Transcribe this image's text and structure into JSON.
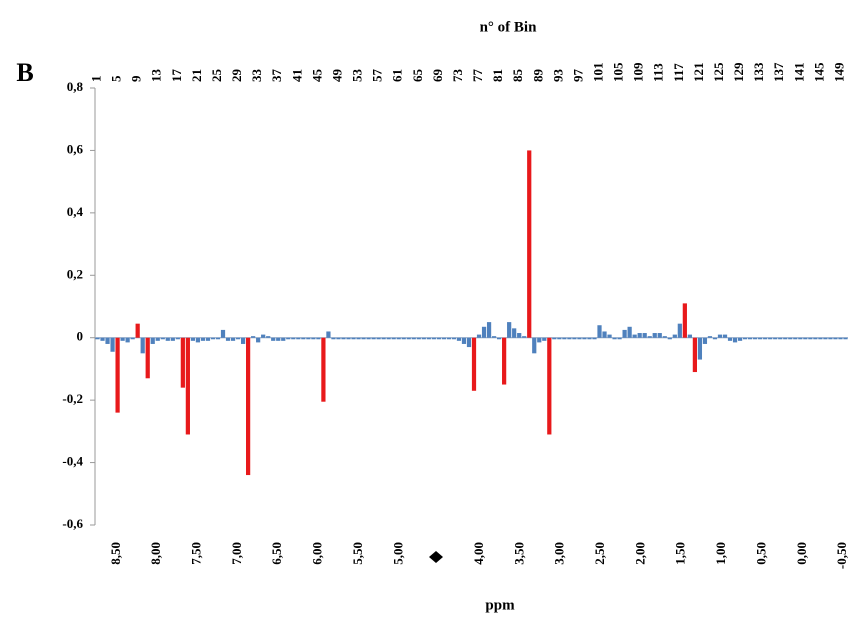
{
  "panel_label": "B",
  "chart_data": {
    "type": "bar",
    "x2_label": "n° of Bin",
    "x_label": "ppm",
    "ylim": [
      -0.6,
      0.8
    ],
    "yticks": [
      {
        "value": -0.6,
        "label": "-0,6"
      },
      {
        "value": -0.4,
        "label": "-0,4"
      },
      {
        "value": -0.2,
        "label": "-0,2"
      },
      0,
      {
        "value": 0.2,
        "label": "0,2"
      },
      {
        "value": 0.4,
        "label": "0,4"
      },
      {
        "value": 0.6,
        "label": "0,6"
      },
      {
        "value": 0.8,
        "label": "0,8"
      }
    ],
    "x2lim": [
      0.5,
      150.5
    ],
    "x2ticks": [
      1,
      5,
      9,
      13,
      17,
      21,
      25,
      29,
      33,
      37,
      41,
      45,
      49,
      53,
      57,
      61,
      65,
      69,
      73,
      77,
      81,
      85,
      89,
      93,
      97,
      101,
      105,
      109,
      113,
      117,
      121,
      125,
      129,
      133,
      137,
      141,
      145,
      149
    ],
    "xlim": [
      8.77,
      -0.56
    ],
    "xticks": [
      {
        "value": 8.5,
        "label": "8,50"
      },
      {
        "value": 8.0,
        "label": "8,00"
      },
      {
        "value": 7.5,
        "label": "7,50"
      },
      {
        "value": 7.0,
        "label": "7,00"
      },
      {
        "value": 6.5,
        "label": "6,50"
      },
      {
        "value": 6.0,
        "label": "6,00"
      },
      {
        "value": 5.5,
        "label": "5,50"
      },
      {
        "value": 5.0,
        "label": "5,00"
      },
      {
        "value": 4.0,
        "label": "4,00"
      },
      {
        "value": 3.5,
        "label": "3,50"
      },
      {
        "value": 3.0,
        "label": "3,00"
      },
      {
        "value": 2.5,
        "label": "2,50"
      },
      {
        "value": 2.0,
        "label": "2,00"
      },
      {
        "value": 1.5,
        "label": "1,50"
      },
      {
        "value": 1.0,
        "label": "1,00"
      },
      {
        "value": 0.5,
        "label": "0,50"
      },
      {
        "value": 0,
        "label": "0,00"
      },
      {
        "value": -0.5,
        "label": "-0,50"
      }
    ],
    "series": [
      {
        "color": "#4f81bd",
        "values": [
          -0.005,
          -0.01,
          -0.02,
          -0.045,
          null,
          -0.01,
          -0.015,
          -0.005,
          null,
          -0.05,
          null,
          -0.02,
          -0.01,
          -0.005,
          -0.01,
          -0.01,
          -0.005,
          null,
          null,
          -0.01,
          -0.015,
          -0.01,
          -0.01,
          -0.005,
          -0.005,
          0.025,
          -0.01,
          -0.01,
          -0.005,
          -0.02,
          null,
          0.005,
          -0.015,
          0.01,
          0.005,
          -0.01,
          -0.01,
          -0.01,
          -0.005,
          -0.005,
          -0.005,
          -0.005,
          -0.005,
          -0.005,
          -0.005,
          null,
          0.02,
          -0.005,
          -0.005,
          -0.005,
          -0.005,
          -0.005,
          -0.005,
          -0.005,
          -0.005,
          -0.005,
          -0.005,
          -0.005,
          -0.005,
          -0.005,
          -0.005,
          -0.005,
          -0.005,
          -0.005,
          -0.005,
          -0.005,
          -0.005,
          -0.005,
          -0.005,
          -0.005,
          -0.005,
          -0.005,
          -0.01,
          -0.02,
          -0.03,
          null,
          0.01,
          0.035,
          0.05,
          0.005,
          -0.005,
          null,
          0.05,
          0.03,
          0.015,
          0.005,
          null,
          -0.05,
          -0.015,
          -0.01,
          null,
          -0.005,
          -0.005,
          -0.005,
          -0.005,
          -0.005,
          -0.005,
          -0.005,
          -0.005,
          -0.005,
          0.04,
          0.02,
          0.01,
          -0.005,
          -0.005,
          0.025,
          0.035,
          0.01,
          0.015,
          0.015,
          0.005,
          0.015,
          0.015,
          0.005,
          -0.005,
          0.01,
          0.045,
          null,
          0.01,
          null,
          -0.07,
          -0.02,
          0.005,
          -0.005,
          0.01,
          0.01,
          -0.01,
          -0.015,
          -0.01,
          -0.005,
          -0.005,
          -0.005,
          -0.005,
          -0.005,
          -0.005,
          -0.005,
          -0.005,
          -0.005,
          -0.005,
          -0.005,
          -0.005,
          -0.005,
          -0.005,
          -0.005,
          -0.005,
          -0.005,
          -0.005,
          -0.005,
          -0.005,
          -0.005
        ]
      },
      {
        "color": "#e8191b",
        "values": [
          null,
          null,
          null,
          null,
          -0.24,
          null,
          null,
          null,
          0.045,
          null,
          -0.13,
          null,
          null,
          null,
          null,
          null,
          null,
          -0.16,
          -0.31,
          null,
          null,
          null,
          null,
          null,
          null,
          null,
          null,
          null,
          null,
          null,
          -0.44,
          null,
          null,
          null,
          null,
          null,
          null,
          null,
          null,
          null,
          null,
          null,
          null,
          null,
          null,
          -0.205,
          null,
          null,
          null,
          null,
          null,
          null,
          null,
          null,
          null,
          null,
          null,
          null,
          null,
          null,
          null,
          null,
          null,
          null,
          null,
          null,
          null,
          null,
          null,
          null,
          null,
          null,
          null,
          null,
          null,
          -0.17,
          null,
          null,
          null,
          null,
          null,
          -0.15,
          null,
          null,
          null,
          null,
          0.6,
          null,
          null,
          null,
          -0.31,
          null,
          null,
          null,
          null,
          null,
          null,
          null,
          null,
          null,
          null,
          null,
          null,
          null,
          null,
          null,
          null,
          null,
          null,
          null,
          null,
          null,
          null,
          null,
          null,
          null,
          null,
          0.11,
          null,
          -0.11,
          null,
          null,
          null,
          null,
          null,
          null,
          null,
          null,
          null,
          null,
          null,
          null,
          null,
          null,
          null,
          null,
          null,
          null,
          null,
          null,
          null,
          null,
          null,
          null,
          null,
          null,
          null,
          null,
          null,
          null
        ]
      }
    ]
  }
}
